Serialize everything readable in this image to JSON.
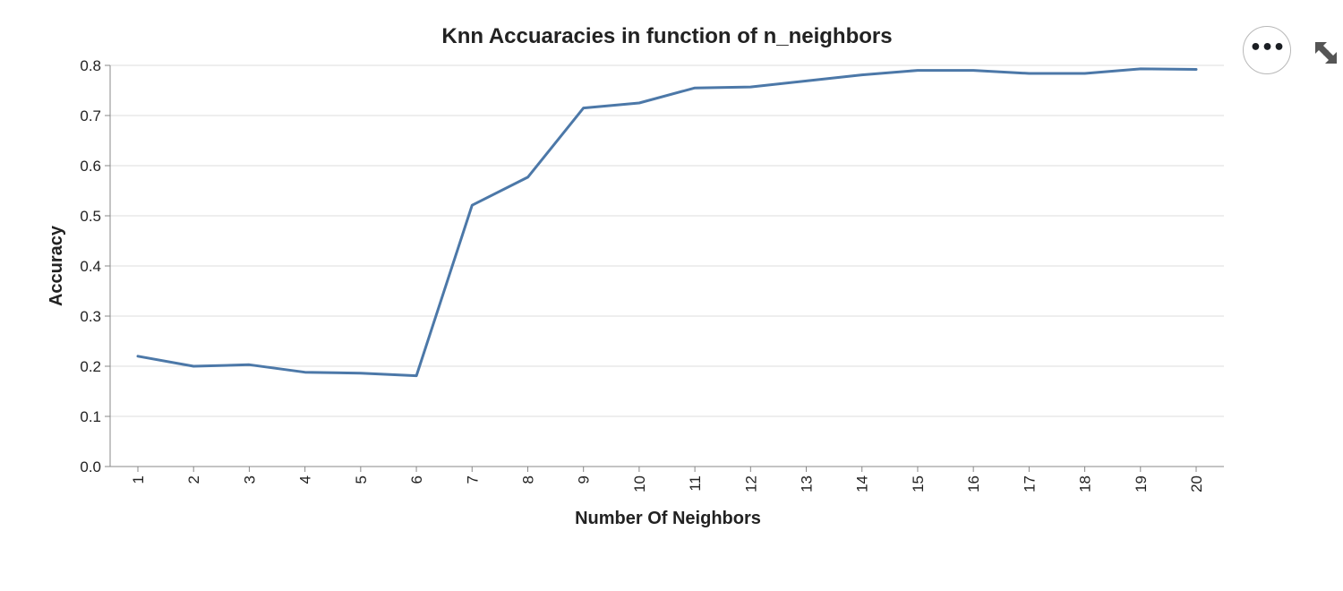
{
  "chart_data": {
    "type": "line",
    "title": "Knn Accuaracies in function of n_neighbors",
    "xlabel": "Number Of Neighbors",
    "ylabel": "Accuracy",
    "x": [
      1,
      2,
      3,
      4,
      5,
      6,
      7,
      8,
      9,
      10,
      11,
      12,
      13,
      14,
      15,
      16,
      17,
      18,
      19,
      20
    ],
    "series": [
      {
        "values": [
          0.22,
          0.2,
          0.203,
          0.188,
          0.186,
          0.181,
          0.521,
          0.577,
          0.715,
          0.725,
          0.755,
          0.757,
          0.769,
          0.781,
          0.79,
          0.79,
          0.784,
          0.784,
          0.793,
          0.792
        ],
        "color": "#4c78a8"
      }
    ],
    "ylim": [
      0,
      0.8
    ],
    "yticks": [
      "0.0",
      "0.1",
      "0.2",
      "0.3",
      "0.4",
      "0.5",
      "0.6",
      "0.7",
      "0.8"
    ],
    "xticks": [
      "1",
      "2",
      "3",
      "4",
      "5",
      "6",
      "7",
      "8",
      "9",
      "10",
      "11",
      "12",
      "13",
      "14",
      "15",
      "16",
      "17",
      "18",
      "19",
      "20"
    ],
    "grid": true,
    "grid_color": "#dddddd",
    "axis_color": "#888888"
  },
  "toolbar": {
    "actions_icon": "more-horizontal-icon",
    "expand_icon": "expand-arrows-icon"
  }
}
